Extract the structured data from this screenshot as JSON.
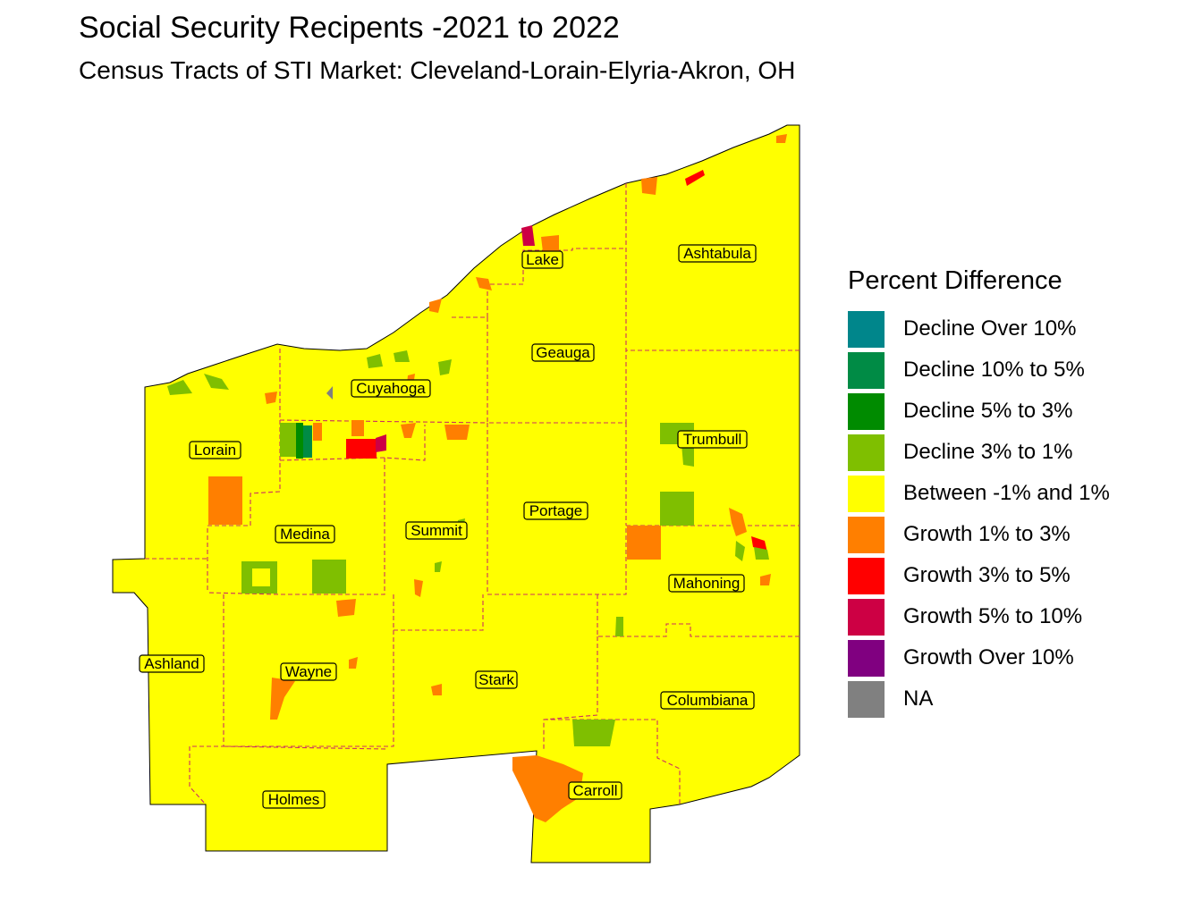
{
  "title": "Social Security Recipents -2021 to 2022",
  "subtitle": "Census Tracts of STI Market: Cleveland-Lorain-Elyria-Akron, OH",
  "legend": {
    "title": "Percent Difference",
    "items": [
      {
        "label": "Decline Over 10%",
        "color": "#00868b"
      },
      {
        "label": "Decline 10% to 5%",
        "color": "#008b45"
      },
      {
        "label": "Decline 5% to 3%",
        "color": "#008b00"
      },
      {
        "label": "Decline 3% to 1%",
        "color": "#7fbf00"
      },
      {
        "label": "Between -1% and 1%",
        "color": "#ffff00"
      },
      {
        "label": "Growth 1% to 3%",
        "color": "#ff7f00"
      },
      {
        "label": "Growth 3% to 5%",
        "color": "#ff0000"
      },
      {
        "label": "Growth 5% to 10%",
        "color": "#cd0044"
      },
      {
        "label": "Growth Over 10%",
        "color": "#800080"
      },
      {
        "label": "NA",
        "color": "#808080"
      }
    ]
  },
  "counties": [
    "Lake",
    "Ashtabula",
    "Geauga",
    "Cuyahoga",
    "Lorain",
    "Trumbull",
    "Portage",
    "Summit",
    "Medina",
    "Mahoning",
    "Ashland",
    "Wayne",
    "Stark",
    "Columbiana",
    "Carroll",
    "Holmes"
  ]
}
